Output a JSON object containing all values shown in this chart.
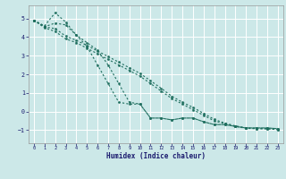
{
  "xlabel": "Humidex (Indice chaleur)",
  "bg_color": "#cce8e8",
  "grid_color": "#ffffff",
  "line_color": "#1e6e5e",
  "text_color": "#1a1a6e",
  "xlim": [
    -0.5,
    23.5
  ],
  "ylim": [
    -1.7,
    5.7
  ],
  "yticks": [
    -1,
    0,
    1,
    2,
    3,
    4,
    5
  ],
  "xticks": [
    0,
    1,
    2,
    3,
    4,
    5,
    6,
    7,
    8,
    9,
    10,
    11,
    12,
    13,
    14,
    15,
    16,
    17,
    18,
    19,
    20,
    21,
    22,
    23
  ],
  "line1_x": [
    0,
    1,
    2,
    3,
    4,
    5,
    6,
    7,
    8,
    9,
    10,
    11,
    12,
    13,
    14,
    15,
    16,
    17,
    18,
    19,
    20,
    21,
    22,
    23
  ],
  "line1_y": [
    4.9,
    4.6,
    5.3,
    4.8,
    4.1,
    3.5,
    2.5,
    1.5,
    0.5,
    0.4,
    0.4,
    -0.35,
    -0.35,
    -0.45,
    -0.35,
    -0.35,
    -0.55,
    -0.7,
    -0.7,
    -0.8,
    -0.88,
    -0.88,
    -0.88,
    -0.92
  ],
  "line2_x": [
    0,
    1,
    2,
    3,
    4,
    5,
    6,
    7,
    8,
    9,
    10,
    11,
    12,
    13,
    14,
    15,
    16,
    17,
    18,
    19,
    20,
    21,
    22,
    23
  ],
  "line2_y": [
    4.9,
    4.55,
    4.75,
    4.65,
    4.1,
    3.7,
    3.3,
    2.5,
    1.5,
    0.5,
    0.4,
    -0.35,
    -0.35,
    -0.45,
    -0.35,
    -0.35,
    -0.55,
    -0.7,
    -0.7,
    -0.8,
    -0.88,
    -0.88,
    -0.88,
    -0.92
  ],
  "line3_x": [
    0,
    1,
    2,
    3,
    4,
    5,
    6,
    7,
    8,
    9,
    10,
    11,
    12,
    13,
    14,
    15,
    16,
    17,
    18,
    19,
    20,
    21,
    22,
    23
  ],
  "line3_y": [
    4.9,
    4.55,
    4.45,
    4.05,
    3.82,
    3.55,
    3.25,
    2.95,
    2.65,
    2.35,
    2.05,
    1.65,
    1.25,
    0.82,
    0.5,
    0.22,
    -0.1,
    -0.42,
    -0.62,
    -0.77,
    -0.87,
    -0.91,
    -0.92,
    -0.97
  ],
  "line4_x": [
    0,
    1,
    2,
    3,
    4,
    5,
    6,
    7,
    8,
    9,
    10,
    11,
    12,
    13,
    14,
    15,
    16,
    17,
    18,
    19,
    20,
    21,
    22,
    23
  ],
  "line4_y": [
    4.9,
    4.5,
    4.3,
    3.9,
    3.7,
    3.4,
    3.1,
    2.8,
    2.5,
    2.2,
    1.9,
    1.5,
    1.1,
    0.7,
    0.4,
    0.1,
    -0.2,
    -0.5,
    -0.65,
    -0.8,
    -0.9,
    -0.92,
    -0.93,
    -0.97
  ]
}
